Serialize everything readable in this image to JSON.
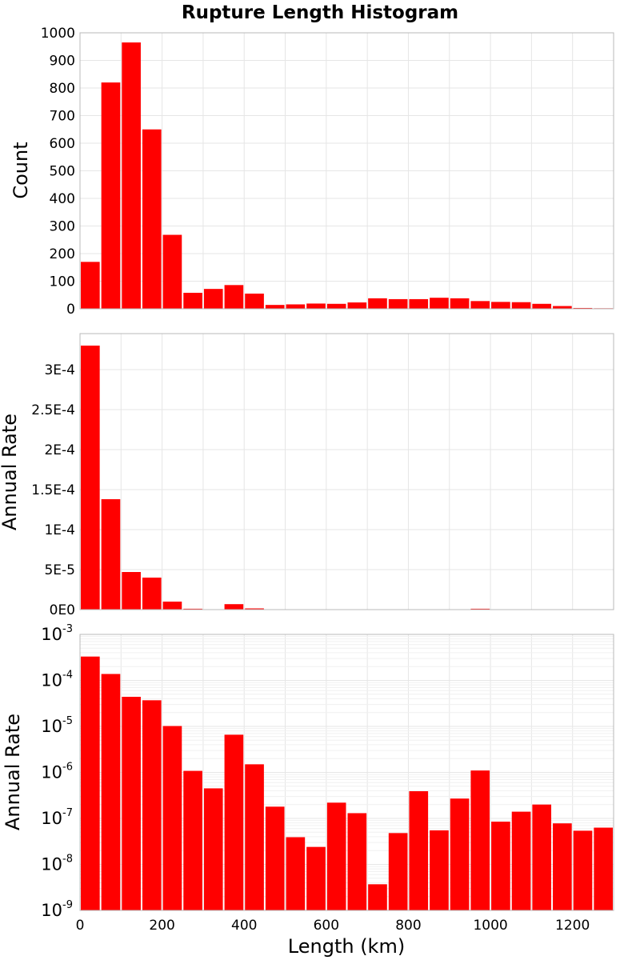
{
  "chart_data": {
    "type": "bar",
    "title": "Rupture Length Histogram",
    "xlabel": "Length (km)",
    "xlim": [
      0,
      1300
    ],
    "xticks": [
      0,
      200,
      400,
      600,
      800,
      1000,
      1200
    ],
    "bin_width": 50,
    "bar_color": "#ff0000",
    "bin_starts": [
      0,
      50,
      100,
      150,
      200,
      250,
      300,
      350,
      400,
      450,
      500,
      550,
      600,
      650,
      700,
      750,
      800,
      850,
      900,
      950,
      1000,
      1050,
      1100,
      1150,
      1200,
      1250
    ],
    "panels": [
      {
        "ylabel": "Count",
        "scale": "linear",
        "ylim": [
          0,
          1000
        ],
        "yticks": [
          0,
          100,
          200,
          300,
          400,
          500,
          600,
          700,
          800,
          900,
          1000
        ],
        "ytick_labels": [
          "0",
          "100",
          "200",
          "300",
          "400",
          "500",
          "600",
          "700",
          "800",
          "900",
          "1000"
        ],
        "values": [
          170,
          820,
          965,
          650,
          268,
          58,
          72,
          86,
          55,
          14,
          16,
          19,
          18,
          23,
          38,
          35,
          35,
          40,
          38,
          28,
          25,
          24,
          18,
          10,
          3,
          2
        ]
      },
      {
        "ylabel": "Annual Rate",
        "scale": "linear",
        "ylim": [
          0,
          0.000345
        ],
        "yticks": [
          0,
          5e-05,
          0.0001,
          0.00015,
          0.0002,
          0.00025,
          0.0003
        ],
        "ytick_labels": [
          "0E0",
          "5E-5",
          "1E-4",
          "1.5E-4",
          "2E-4",
          "2.5E-4",
          "3E-4"
        ],
        "values": [
          0.00033,
          0.000138,
          4.7e-05,
          4e-05,
          1e-05,
          1.1e-06,
          5e-07,
          6.8e-06,
          1.5e-06,
          2e-07,
          4e-08,
          2e-08,
          2e-07,
          1.4e-07,
          4e-09,
          5e-08,
          4e-07,
          6e-08,
          3e-07,
          1.1e-06,
          8e-08,
          1.5e-07,
          2e-07,
          8e-08,
          6e-08,
          7e-08
        ]
      },
      {
        "ylabel": "Annual Rate",
        "scale": "log",
        "ylim": [
          1e-09,
          0.001
        ],
        "ytick_base": "10",
        "ytick_exponents": [
          "-9",
          "-8",
          "-7",
          "-6",
          "-5",
          "-4",
          "-3"
        ],
        "values": [
          0.00033,
          0.000138,
          4.4e-05,
          3.7e-05,
          1.02e-05,
          1.08e-06,
          4.5e-07,
          6.6e-06,
          1.5e-06,
          1.8e-07,
          3.9e-08,
          2.4e-08,
          2.2e-07,
          1.3e-07,
          3.7e-09,
          4.8e-08,
          3.9e-07,
          5.5e-08,
          2.7e-07,
          1.1e-06,
          8.5e-08,
          1.4e-07,
          2e-07,
          7.8e-08,
          5.4e-08,
          6.3e-08
        ]
      }
    ]
  }
}
